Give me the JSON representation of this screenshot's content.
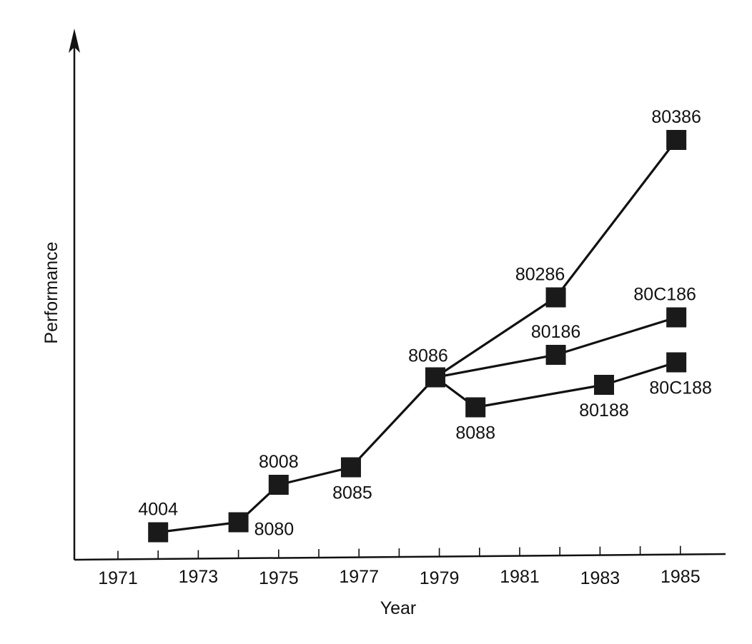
{
  "chart_data": {
    "type": "line",
    "title": "",
    "xlabel": "Year",
    "ylabel": "Performance",
    "xlim": [
      1970,
      1986
    ],
    "ylim": [
      0,
      100
    ],
    "grid": false,
    "xticks": [
      1971,
      1972,
      1973,
      1974,
      1975,
      1976,
      1977,
      1978,
      1979,
      1980,
      1981,
      1982,
      1983,
      1984,
      1985
    ],
    "xtick_labels": [
      "1971",
      "1973",
      "1975",
      "1977",
      "1979",
      "1981",
      "1983",
      "1985"
    ],
    "points": [
      {
        "id": "4004",
        "label": "4004",
        "x": 1972.0,
        "y": 5.5,
        "label_pos": "above"
      },
      {
        "id": "8080",
        "label": "8080",
        "x": 1974.0,
        "y": 7.5,
        "label_pos": "below-right"
      },
      {
        "id": "8008",
        "label": "8008",
        "x": 1975.0,
        "y": 15.0,
        "label_pos": "above"
      },
      {
        "id": "8085",
        "label": "8085",
        "x": 1976.8,
        "y": 18.5,
        "label_pos": "below"
      },
      {
        "id": "8086",
        "label": "8086",
        "x": 1978.9,
        "y": 36.5,
        "label_pos": "above"
      },
      {
        "id": "8088",
        "label": "8088",
        "x": 1979.9,
        "y": 30.5,
        "label_pos": "below"
      },
      {
        "id": "80286",
        "label": "80286",
        "x": 1981.9,
        "y": 52.5,
        "label_pos": "above"
      },
      {
        "id": "80186",
        "label": "80186",
        "x": 1981.9,
        "y": 41.0,
        "label_pos": "above"
      },
      {
        "id": "80188",
        "label": "80188",
        "x": 1983.1,
        "y": 35.0,
        "label_pos": "below"
      },
      {
        "id": "80386",
        "label": "80386",
        "x": 1984.9,
        "y": 84.0,
        "label_pos": "above"
      },
      {
        "id": "80C186",
        "label": "80C186",
        "x": 1984.9,
        "y": 48.5,
        "label_pos": "above"
      },
      {
        "id": "80C188",
        "label": "80C188",
        "x": 1984.9,
        "y": 39.5,
        "label_pos": "below"
      }
    ],
    "series": [
      {
        "points": [
          "4004",
          "8080",
          "8008",
          "8085",
          "8086"
        ]
      },
      {
        "points": [
          "8086",
          "80286",
          "80386"
        ]
      },
      {
        "points": [
          "8086",
          "80186",
          "80C186"
        ]
      },
      {
        "points": [
          "8086",
          "8088",
          "80188",
          "80C188"
        ]
      }
    ]
  }
}
